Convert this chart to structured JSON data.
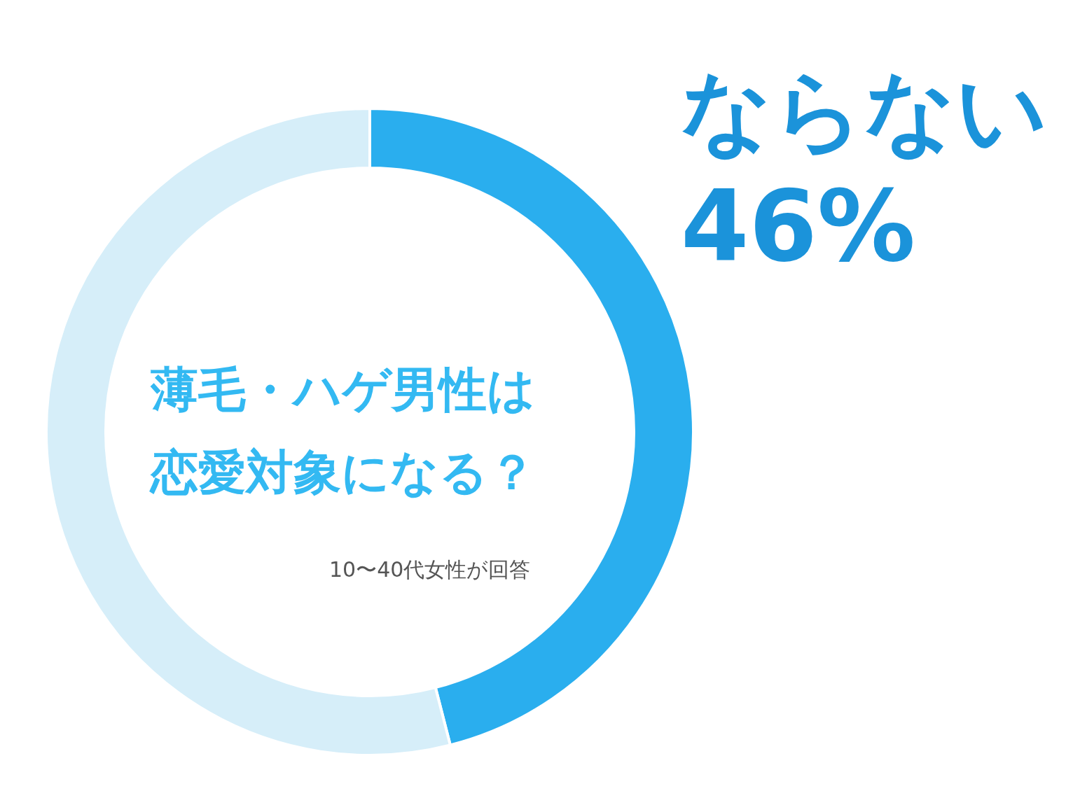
{
  "chart_data": {
    "type": "donut",
    "title": "薄毛・ハゲ男性は恋愛対象になる？",
    "categories": [
      "ならない",
      null
    ],
    "values": [
      46,
      54
    ],
    "value_labels": [
      "46%",
      null
    ],
    "colors": [
      "#2aaeee",
      "#d6eef9"
    ],
    "annotations": [
      "10〜40代女性が回答"
    ]
  }
}
